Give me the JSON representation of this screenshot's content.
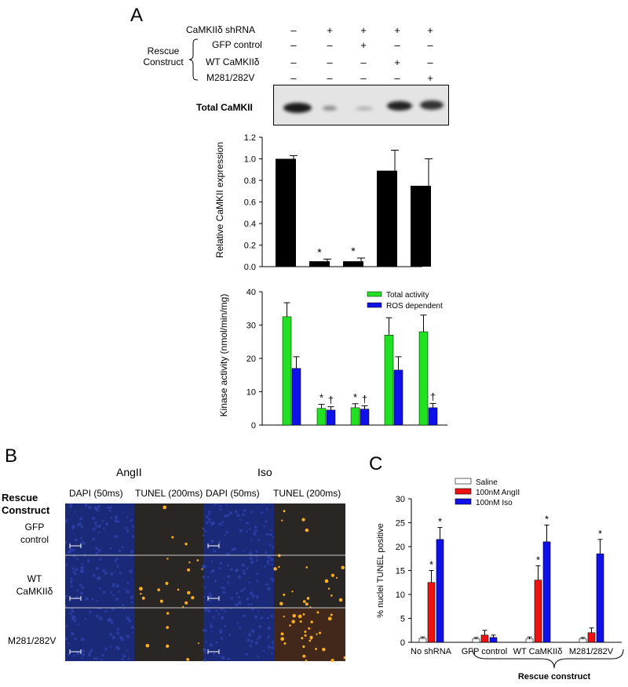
{
  "panels": {
    "a": "A",
    "b": "B",
    "c": "C"
  },
  "panelA": {
    "conditions": [
      {
        "label": "CaMKIIδ shRNA",
        "values": [
          "–",
          "+",
          "+",
          "+",
          "+"
        ]
      },
      {
        "label": "GFP control",
        "values": [
          "–",
          "–",
          "+",
          "–",
          "–"
        ]
      },
      {
        "label": "WT CaMKIIδ",
        "values": [
          "–",
          "–",
          "–",
          "+",
          "–"
        ]
      },
      {
        "label": "M281/282V",
        "values": [
          "–",
          "–",
          "–",
          "–",
          "+"
        ]
      }
    ],
    "rescue_label": [
      "Rescue",
      "Construct"
    ],
    "blot_label": "Total CaMKII"
  },
  "panelB": {
    "group_headers": [
      "AngII",
      "Iso"
    ],
    "col_headers": [
      "DAPI (50ms)",
      "TUNEL (200ms)",
      "DAPI (50ms)",
      "TUNEL (200ms)"
    ],
    "row_header": [
      "Rescue",
      "Construct"
    ],
    "rows": [
      [
        "GFP",
        "control"
      ],
      [
        "WT",
        "CaMKIIδ"
      ],
      [
        "M281/282V"
      ]
    ],
    "colors": {
      "dapi": "#1a2a78",
      "tunel": "#2a2624",
      "dots": "#ffb020"
    }
  },
  "chart_data": [
    {
      "id": "expression",
      "type": "bar",
      "ylabel": "Relative CaMKII expression",
      "ylim": [
        0,
        1.2
      ],
      "yticks": [
        0.0,
        0.2,
        0.4,
        0.6,
        0.8,
        1.0,
        1.2
      ],
      "tick_labels": [
        "0.0",
        "0.2",
        "0.4",
        "0.6",
        "0.8",
        "1.0",
        "1.2"
      ],
      "series": [
        {
          "values": [
            1.0,
            0.05,
            0.05,
            0.89,
            0.75
          ],
          "errors": [
            0.03,
            0.02,
            0.03,
            0.19,
            0.25
          ],
          "color": "#000000"
        }
      ],
      "annotations": [
        "",
        "*",
        "*",
        "",
        ""
      ]
    },
    {
      "id": "kinase",
      "type": "bar",
      "ylabel": "Kinase activity (nmol/min/mg)",
      "ylim": [
        0,
        40
      ],
      "yticks": [
        0,
        10,
        20,
        30,
        40
      ],
      "tick_labels": [
        "0",
        "10",
        "20",
        "30",
        "40"
      ],
      "legend_position": "top-right",
      "series": [
        {
          "name": "Total activity",
          "values": [
            32.5,
            5.0,
            5.2,
            27.0,
            28.0
          ],
          "errors": [
            4.2,
            1.2,
            1.2,
            5.2,
            5.0
          ],
          "color": "#22e022"
        },
        {
          "name": "ROS dependent",
          "values": [
            17.0,
            4.5,
            4.8,
            16.5,
            5.2
          ],
          "errors": [
            3.5,
            1.0,
            1.0,
            4.0,
            1.3
          ],
          "color": "#1010e8"
        }
      ],
      "annotations": [
        {
          "index": 1,
          "marks": [
            "*",
            "†"
          ]
        },
        {
          "index": 2,
          "marks": [
            "*",
            "†"
          ]
        },
        {
          "index": 4,
          "marks": [
            "",
            "†"
          ]
        }
      ]
    },
    {
      "id": "tunel",
      "type": "bar",
      "ylabel": "% nuclei TUNEL positive",
      "ylim": [
        0,
        30
      ],
      "yticks": [
        0,
        5,
        10,
        15,
        20,
        25,
        30
      ],
      "tick_labels": [
        "0",
        "5",
        "10",
        "15",
        "20",
        "25",
        "30"
      ],
      "categories": [
        "No shRNA",
        "GFP control",
        "WT CaMKIIδ",
        "M281/282V"
      ],
      "legend_position": "top-left",
      "series": [
        {
          "name": "Saline",
          "values": [
            0.8,
            0.7,
            0.7,
            0.7
          ],
          "errors": [
            0.3,
            0.3,
            0.4,
            0.3
          ],
          "color": "#ffffff"
        },
        {
          "name": "100nM AngII",
          "values": [
            12.5,
            1.5,
            13.0,
            2.0
          ],
          "errors": [
            2.5,
            1.0,
            3.0,
            1.0
          ],
          "color": "#ee1111"
        },
        {
          "name": "100nM Iso",
          "values": [
            21.5,
            1.0,
            21.0,
            18.5
          ],
          "errors": [
            2.5,
            0.5,
            3.5,
            3.0
          ],
          "color": "#1010e8"
        }
      ],
      "significance": [
        [
          "",
          "*",
          "*"
        ],
        [
          "",
          "",
          ""
        ],
        [
          "",
          "*",
          "*"
        ],
        [
          "",
          "",
          "*"
        ]
      ],
      "bracket_label": "Rescue construct"
    }
  ]
}
